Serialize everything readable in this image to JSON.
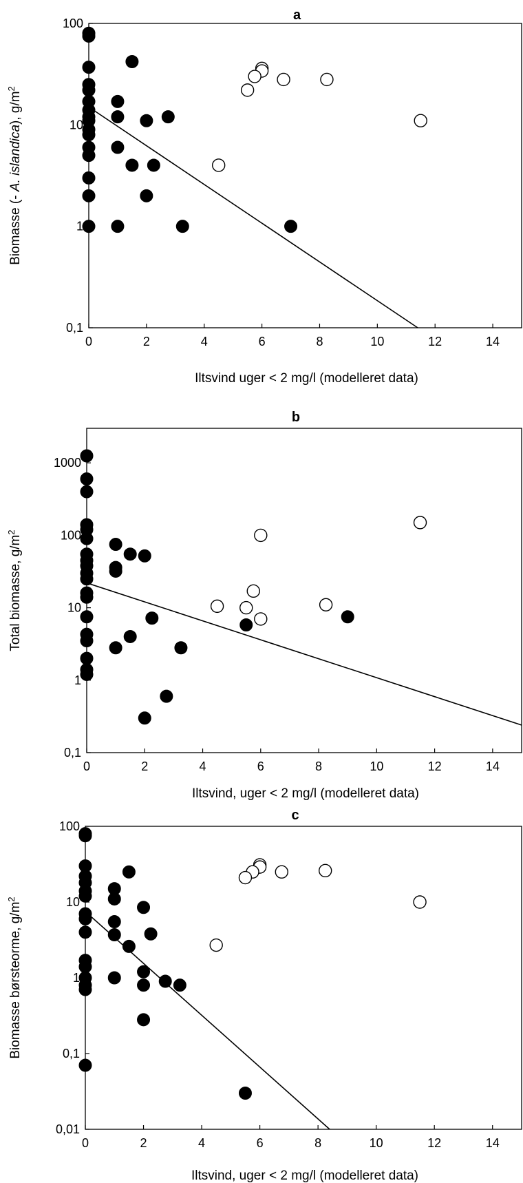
{
  "chart_data": [
    {
      "type": "scatter",
      "title": "a",
      "xlabel": "Iltsvind uger < 2 mg/l (modelleret data)",
      "ylabel_parts": [
        "Biomasse (- ",
        "A. islandica",
        "), g/m",
        "2"
      ],
      "y_scale": "log",
      "xlim": [
        0,
        15
      ],
      "ylim": [
        0.1,
        100
      ],
      "x_ticks": [
        0,
        2,
        4,
        6,
        8,
        10,
        12,
        14
      ],
      "x_tick_labels": [
        "0",
        "2",
        "4",
        "6",
        "8",
        "10",
        "12",
        "14"
      ],
      "y_ticks": [
        0.1,
        1,
        10,
        100
      ],
      "y_tick_labels": [
        "0,1",
        "1",
        "10",
        "100"
      ],
      "grid": false,
      "series": [
        {
          "marker": "filled-circle",
          "points": [
            [
              0,
              80
            ],
            [
              0,
              75
            ],
            [
              0,
              37
            ],
            [
              0,
              25
            ],
            [
              0,
              22
            ],
            [
              0,
              17
            ],
            [
              0,
              14
            ],
            [
              0,
              12
            ],
            [
              0,
              11
            ],
            [
              0,
              9
            ],
            [
              0,
              8
            ],
            [
              0,
              6
            ],
            [
              0,
              5
            ],
            [
              0,
              3
            ],
            [
              0,
              2
            ],
            [
              0,
              1
            ],
            [
              1.5,
              42
            ],
            [
              1,
              17
            ],
            [
              1,
              12
            ],
            [
              2,
              11
            ],
            [
              2.75,
              12
            ],
            [
              1,
              6
            ],
            [
              1.5,
              4
            ],
            [
              2.25,
              4
            ],
            [
              2,
              2
            ],
            [
              1,
              1
            ],
            [
              3.25,
              1
            ],
            [
              7,
              1
            ]
          ]
        },
        {
          "marker": "open-circle",
          "points": [
            [
              6,
              36
            ],
            [
              6,
              34
            ],
            [
              5.75,
              30
            ],
            [
              6.75,
              28
            ],
            [
              8.25,
              28
            ],
            [
              5.5,
              22
            ],
            [
              11.5,
              11
            ],
            [
              4.5,
              4
            ]
          ]
        }
      ],
      "trendline": [
        [
          0,
          15
        ],
        [
          11.4,
          0.1
        ]
      ]
    },
    {
      "type": "scatter",
      "title": "b",
      "xlabel": "Iltsvind, uger < 2 mg/l (modelleret data)",
      "ylabel_parts": [
        "Total biomasse, g/m",
        "2"
      ],
      "y_scale": "log",
      "xlim": [
        0,
        15
      ],
      "ylim": [
        0.1,
        3000
      ],
      "x_ticks": [
        0,
        2,
        4,
        6,
        8,
        10,
        12,
        14
      ],
      "x_tick_labels": [
        "0",
        "2",
        "4",
        "6",
        "8",
        "10",
        "12",
        "14"
      ],
      "y_ticks": [
        0.1,
        1,
        10,
        100,
        1000
      ],
      "y_tick_labels": [
        "0,1",
        "1",
        "10",
        "100",
        "1000"
      ],
      "grid": false,
      "series": [
        {
          "marker": "filled-circle",
          "points": [
            [
              0,
              1250
            ],
            [
              0,
              600
            ],
            [
              0,
              400
            ],
            [
              0,
              140
            ],
            [
              0,
              120
            ],
            [
              0,
              90
            ],
            [
              0,
              55
            ],
            [
              0,
              45
            ],
            [
              0,
              38
            ],
            [
              0,
              30
            ],
            [
              0,
              25
            ],
            [
              0,
              16
            ],
            [
              0,
              14
            ],
            [
              0,
              7.5
            ],
            [
              0,
              4.3
            ],
            [
              0,
              3.5
            ],
            [
              0,
              2
            ],
            [
              0,
              1.4
            ],
            [
              0,
              1.2
            ],
            [
              1,
              75
            ],
            [
              1,
              36
            ],
            [
              1,
              32
            ],
            [
              1.5,
              55
            ],
            [
              2,
              52
            ],
            [
              2.25,
              7.2
            ],
            [
              1.5,
              4
            ],
            [
              1,
              2.8
            ],
            [
              3.25,
              2.8
            ],
            [
              2.75,
              0.6
            ],
            [
              2,
              0.3
            ],
            [
              5.5,
              5.8
            ],
            [
              9,
              7.5
            ]
          ]
        },
        {
          "marker": "open-circle",
          "points": [
            [
              11.5,
              150
            ],
            [
              6,
              100
            ],
            [
              5.75,
              17
            ],
            [
              4.5,
              10.5
            ],
            [
              5.5,
              10
            ],
            [
              8.25,
              11
            ],
            [
              6,
              7
            ]
          ]
        }
      ],
      "trendline": [
        [
          0,
          22
        ],
        [
          15,
          0.24
        ]
      ]
    },
    {
      "type": "scatter",
      "title": "c",
      "xlabel": "Iltsvind, uger < 2 mg/l (modelleret data)",
      "ylabel_parts": [
        "Biomasse børsteorme, g/m",
        "2"
      ],
      "y_scale": "log",
      "xlim": [
        0,
        15
      ],
      "ylim": [
        0.01,
        100
      ],
      "x_ticks": [
        0,
        2,
        4,
        6,
        8,
        10,
        12,
        14
      ],
      "x_tick_labels": [
        "0",
        "2",
        "4",
        "6",
        "8",
        "10",
        "12",
        "14"
      ],
      "y_ticks": [
        0.01,
        0.1,
        1,
        10,
        100
      ],
      "y_tick_labels": [
        "0,01",
        "0,1",
        "1",
        "10",
        "100"
      ],
      "grid": false,
      "series": [
        {
          "marker": "filled-circle",
          "points": [
            [
              0,
              80
            ],
            [
              0,
              75
            ],
            [
              0,
              30
            ],
            [
              0,
              22
            ],
            [
              0,
              18
            ],
            [
              0,
              14
            ],
            [
              0,
              12
            ],
            [
              0,
              7
            ],
            [
              0,
              6
            ],
            [
              0,
              4
            ],
            [
              0,
              1.7
            ],
            [
              0,
              1.4
            ],
            [
              0,
              1
            ],
            [
              0,
              0.8
            ],
            [
              0,
              0.7
            ],
            [
              0,
              0.07
            ],
            [
              1.5,
              25
            ],
            [
              1,
              15
            ],
            [
              1,
              11
            ],
            [
              2,
              8.5
            ],
            [
              1,
              5.5
            ],
            [
              1,
              3.7
            ],
            [
              2.25,
              3.8
            ],
            [
              1.5,
              2.6
            ],
            [
              2,
              1.2
            ],
            [
              1,
              1
            ],
            [
              2,
              0.8
            ],
            [
              2.75,
              0.9
            ],
            [
              3.25,
              0.8
            ],
            [
              2,
              0.28
            ],
            [
              5.5,
              0.03
            ]
          ]
        },
        {
          "marker": "open-circle",
          "points": [
            [
              6,
              31
            ],
            [
              6,
              29
            ],
            [
              5.75,
              25
            ],
            [
              5.5,
              21
            ],
            [
              6.75,
              25
            ],
            [
              8.25,
              26
            ],
            [
              11.5,
              10
            ],
            [
              4.5,
              2.7
            ]
          ]
        }
      ],
      "trendline": [
        [
          0,
          7.5
        ],
        [
          8.4,
          0.01
        ]
      ]
    }
  ]
}
